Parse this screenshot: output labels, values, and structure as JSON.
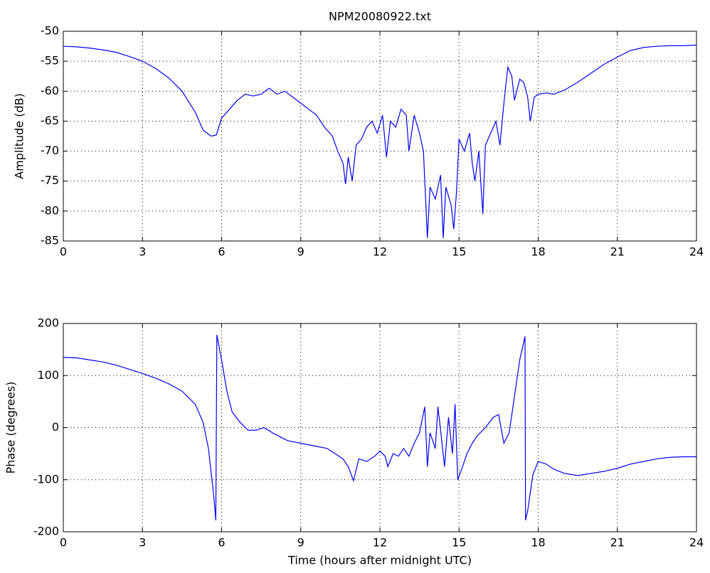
{
  "chart_data": [
    {
      "type": "line",
      "title": "NPM20080922.txt",
      "ylabel": "Amplitude (dB)",
      "xlim": [
        0,
        24
      ],
      "xticks": [
        0,
        3,
        6,
        9,
        12,
        15,
        18,
        21,
        24
      ],
      "ylim": [
        -85,
        -50
      ],
      "yticks": [
        -85,
        -80,
        -75,
        -70,
        -65,
        -60,
        -55,
        -50
      ],
      "grid": true,
      "x": [
        0,
        0.5,
        1,
        1.5,
        2,
        2.5,
        3,
        3.5,
        4,
        4.5,
        5,
        5.3,
        5.6,
        5.8,
        6.0,
        6.3,
        6.6,
        6.9,
        7.2,
        7.5,
        7.8,
        8.1,
        8.4,
        8.7,
        9.0,
        9.3,
        9.6,
        9.9,
        10.2,
        10.4,
        10.6,
        10.7,
        10.8,
        10.95,
        11.1,
        11.3,
        11.5,
        11.7,
        11.9,
        12.1,
        12.25,
        12.4,
        12.6,
        12.8,
        13.0,
        13.1,
        13.3,
        13.5,
        13.65,
        13.8,
        13.9,
        14.1,
        14.3,
        14.4,
        14.5,
        14.7,
        14.8,
        14.9,
        15.0,
        15.2,
        15.4,
        15.5,
        15.6,
        15.75,
        15.9,
        16.0,
        16.2,
        16.4,
        16.55,
        16.7,
        16.85,
        17.0,
        17.1,
        17.3,
        17.45,
        17.6,
        17.7,
        17.85,
        18.0,
        18.3,
        18.6,
        19.0,
        19.5,
        20,
        20.5,
        21,
        21.5,
        22,
        22.5,
        23,
        23.5,
        24
      ],
      "series": [
        {
          "color": "#0000ff",
          "values": [
            -52.5,
            -52.6,
            -52.8,
            -53.1,
            -53.5,
            -54.2,
            -55.0,
            -56.2,
            -57.8,
            -60.0,
            -63.5,
            -66.5,
            -67.5,
            -67.3,
            -64.5,
            -63,
            -61.5,
            -60.5,
            -60.8,
            -60.5,
            -59.5,
            -60.5,
            -60,
            -61,
            -62,
            -63,
            -64,
            -66,
            -67.5,
            -70,
            -72,
            -75.5,
            -71,
            -75,
            -69,
            -68,
            -66,
            -65,
            -67,
            -64,
            -71,
            -65,
            -66,
            -63,
            -64,
            -70,
            -64,
            -67,
            -70,
            -84.5,
            -76,
            -78,
            -74,
            -84.5,
            -76,
            -79,
            -83,
            -77,
            -68,
            -70,
            -67,
            -72,
            -75,
            -70,
            -80.5,
            -69,
            -67,
            -65,
            -69,
            -62,
            -56,
            -57.5,
            -61.5,
            -58,
            -58.5,
            -61,
            -65,
            -61,
            -60.5,
            -60.3,
            -60.5,
            -59.8,
            -58.5,
            -57,
            -55.5,
            -54.3,
            -53.2,
            -52.7,
            -52.5,
            -52.4,
            -52.4,
            -52.3
          ]
        }
      ]
    },
    {
      "type": "line",
      "ylabel": "Phase (degrees)",
      "xlabel": "Time (hours after midnight UTC)",
      "xlim": [
        0,
        24
      ],
      "xticks": [
        0,
        3,
        6,
        9,
        12,
        15,
        18,
        21,
        24
      ],
      "ylim": [
        -200,
        200
      ],
      "yticks": [
        -200,
        -100,
        0,
        100,
        200
      ],
      "grid": true,
      "x": [
        0,
        0.5,
        1,
        1.5,
        2,
        2.5,
        3,
        3.5,
        4,
        4.5,
        5,
        5.3,
        5.5,
        5.7,
        5.78,
        5.82,
        6.0,
        6.2,
        6.4,
        6.7,
        7,
        7.3,
        7.6,
        8,
        8.5,
        9,
        9.5,
        10,
        10.3,
        10.6,
        10.8,
        11.0,
        11.2,
        11.5,
        11.8,
        12.0,
        12.2,
        12.3,
        12.5,
        12.7,
        12.9,
        13.1,
        13.3,
        13.5,
        13.7,
        13.8,
        13.9,
        14.1,
        14.2,
        14.3,
        14.45,
        14.6,
        14.75,
        14.85,
        14.95,
        15.1,
        15.3,
        15.5,
        15.7,
        16.0,
        16.3,
        16.5,
        16.7,
        16.9,
        17.1,
        17.3,
        17.5,
        17.52,
        17.6,
        17.8,
        18.0,
        18.3,
        18.6,
        19,
        19.5,
        20,
        20.5,
        21,
        21.5,
        22,
        22.5,
        23,
        23.5,
        24
      ],
      "series": [
        {
          "color": "#0000ff",
          "values": [
            135,
            134,
            130,
            126,
            120,
            112,
            104,
            95,
            84,
            70,
            45,
            10,
            -40,
            -130,
            -178,
            178,
            130,
            70,
            30,
            10,
            -5,
            -5,
            0,
            -12,
            -25,
            -30,
            -35,
            -40,
            -50,
            -60,
            -75,
            -102,
            -60,
            -65,
            -55,
            -45,
            -55,
            -75,
            -50,
            -55,
            -40,
            -55,
            -30,
            -10,
            40,
            -75,
            -10,
            -40,
            40,
            -5,
            -75,
            20,
            -50,
            45,
            -100,
            -80,
            -50,
            -30,
            -15,
            0,
            20,
            25,
            -30,
            -10,
            60,
            130,
            175,
            -178,
            -160,
            -90,
            -65,
            -70,
            -80,
            -88,
            -92,
            -88,
            -84,
            -78,
            -70,
            -65,
            -60,
            -57,
            -56,
            -56
          ]
        }
      ]
    }
  ]
}
